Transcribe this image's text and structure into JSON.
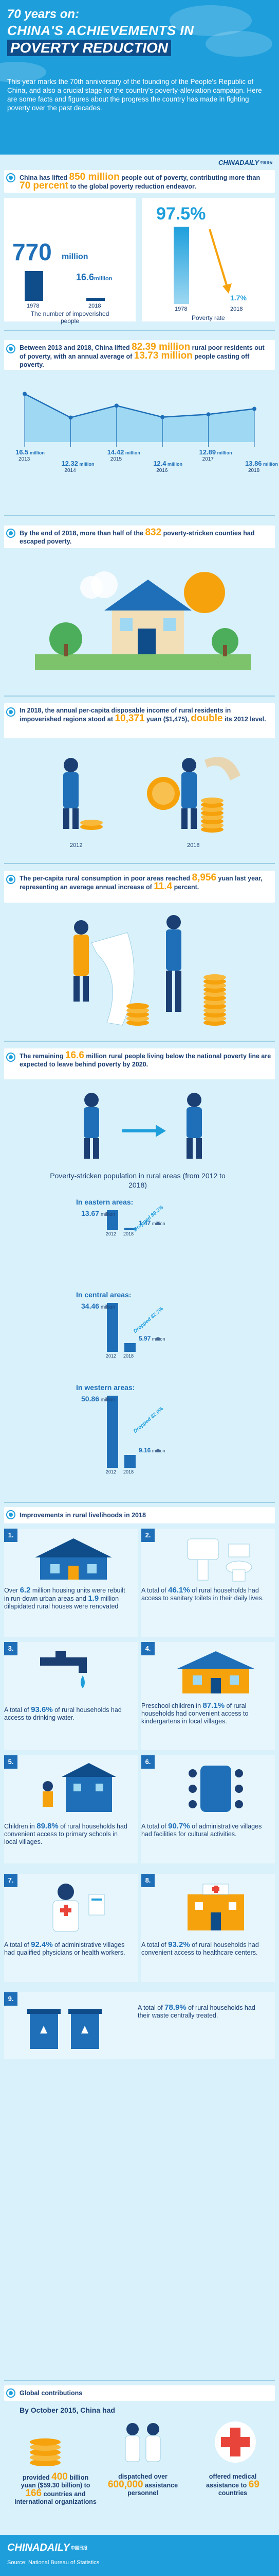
{
  "header": {
    "line1": "70 years on:",
    "line2": "CHINA'S ACHIEVEMENTS IN",
    "line3": "POVERTY REDUCTION",
    "intro": "This year marks the 70th anniversary of the founding of the People's Republic of China, and also a crucial stage for the country's poverty-alleviation campaign. Here are some facts and figures about the progress the country has made in fighting poverty over the past decades."
  },
  "logo": {
    "name": "CHINADAILY",
    "sub": "中国日报"
  },
  "s1": {
    "t1": "China has lifted ",
    "h1": "850 million",
    "t2": " people out of poverty, contributing more than ",
    "h2": "70 percent",
    "t3": " to the global poverty reduction endeavor.",
    "left_big": "770",
    "left_unit": "million",
    "left_small": "16.6",
    "left_small_unit": "million",
    "y1": "1978",
    "y2": "2018",
    "left_caption": "The number of impoverished people",
    "right_big": "97.5%",
    "right_small": "1.7%",
    "ry1": "1978",
    "ry2": "2018",
    "right_caption": "Poverty rate"
  },
  "s2": {
    "t1": "Between 2013 and 2018, China lifted ",
    "h1": "82.39 million",
    "t2": " rural poor residents out of poverty, with an annual average of ",
    "h2": "13.73 million",
    "t3": " people casting off poverty.",
    "points": [
      {
        "value": "16.5",
        "year": "2013"
      },
      {
        "value": "12.32",
        "year": "2014"
      },
      {
        "value": "14.42",
        "year": "2015"
      },
      {
        "value": "12.4",
        "year": "2016"
      },
      {
        "value": "12.89",
        "year": "2017"
      },
      {
        "value": "13.86",
        "year": "2018"
      }
    ],
    "unit": "million"
  },
  "s3": {
    "t1": "By the end of 2018, more than half of the ",
    "h1": "832",
    "t2": " poverty-stricken counties had escaped poverty."
  },
  "s4": {
    "t1": "In 2018, the annual per-capita disposable income of rural residents in impoverished regions stood at ",
    "h1": "10,371",
    "t2": " yuan ($1,475), ",
    "h2": "double",
    "t3": " its 2012 level.",
    "y1": "2012",
    "y2": "2018"
  },
  "s5": {
    "t1": "The per-capita rural consumption in poor areas reached ",
    "h1": "8,956",
    "t2": " yuan last year, representing an average annual increase of ",
    "h2": "11.4",
    "t3": " percent."
  },
  "s6": {
    "t1": "The remaining ",
    "h1": "16.6",
    "t2": " million rural people living below the national poverty line are expected to leave behind poverty by 2020.",
    "caption": "Poverty-stricken population in rural areas (from 2012 to 2018)",
    "eastern": {
      "title": "In eastern areas:",
      "v1": "13.67",
      "u1": "million",
      "v2": "1.47",
      "u2": "million",
      "drop": "Dropped 89.2%",
      "y1": "2012",
      "y2": "2018"
    },
    "central": {
      "title": "In central areas:",
      "v1": "34.46",
      "u1": "million",
      "v2": "5.97",
      "u2": "million",
      "drop": "Dropped 82.7%",
      "y1": "2012",
      "y2": "2018"
    },
    "western": {
      "title": "In western areas:",
      "v1": "50.86",
      "u1": "million",
      "v2": "9.16",
      "u2": "million",
      "drop": "Dropped 82.0%",
      "y1": "2012",
      "y2": "2018"
    }
  },
  "s7": {
    "title": "Improvements in rural livelihoods in 2018",
    "t1a": "Over ",
    "t1b": "6.2",
    "t1c": " million housing units were rebuilt in run-down urban areas and ",
    "t1d": "1.9",
    "t1e": " million dilapidated rural houses were renovated",
    "t2a": "A total of ",
    "t2b": "46.1%",
    "t2c": " of rural households had access to sanitary toilets in their daily lives.",
    "t3a": "A total of ",
    "t3b": "93.6%",
    "t3c": " of rural households had access to drinking water.",
    "t4a": "Preschool children in ",
    "t4b": "87.1%",
    "t4c": " of rural households had convenient access to kindergartens in local villages.",
    "t5a": "Children in ",
    "t5b": "89.8%",
    "t5c": " of rural households had convenient access to primary schools in local villages.",
    "t6a": "A total of ",
    "t6b": "90.7%",
    "t6c": " of administrative villages had facilities for cultural activities.",
    "t7a": "A total of ",
    "t7b": "92.4%",
    "t7c": " of administrative villages had qualified physicians or health workers.",
    "t8a": "A total of ",
    "t8b": "93.2%",
    "t8c": " of rural households had convenient access to healthcare centers.",
    "t9a": "A total of ",
    "t9b": "78.9%",
    "t9c": " of rural households had their waste centrally treated.",
    "nums": [
      "1.",
      "2.",
      "3.",
      "4.",
      "5.",
      "6.",
      "7.",
      "8.",
      "9."
    ]
  },
  "s8": {
    "title": "Global contributions",
    "sub": "By October 2015, China had",
    "c1a": "provided ",
    "c1b": "400",
    "c1c": " billion yuan ($59.30 billion) to ",
    "c1d": "166",
    "c1e": " countries and international organizations",
    "c2a": "dispatched over ",
    "c2b": "600,000",
    "c2c": " assistance personnel",
    "c3a": "offered medical assistance to ",
    "c3b": "69",
    "c3c": " countries"
  },
  "footer": {
    "source": "Source: National Bureau of Statistics"
  }
}
